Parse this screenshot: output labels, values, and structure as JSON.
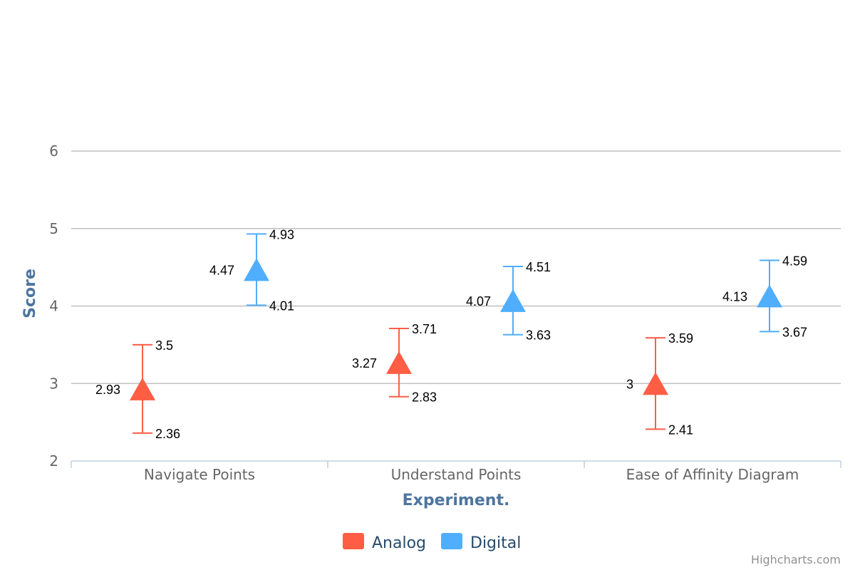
{
  "chart_data": {
    "type": "scatter",
    "title": "",
    "xlabel": "Experiment.",
    "ylabel": "Score",
    "categories": [
      "Navigate Points",
      "Understand Points",
      "Ease of Affinity Diagram"
    ],
    "ylim": [
      2,
      6
    ],
    "yticks": [
      "2",
      "3",
      "4",
      "5",
      "6"
    ],
    "grid": true,
    "legend_position": "bottom-center",
    "marker": "triangle",
    "series": [
      {
        "name": "Analog",
        "color": "#ff5d44",
        "values": [
          2.93,
          3.27,
          3
        ],
        "labels": [
          "2.93",
          "3.27",
          "3"
        ],
        "low": [
          2.36,
          2.83,
          2.41
        ],
        "low_labels": [
          "2.36",
          "2.83",
          "2.41"
        ],
        "high": [
          3.5,
          3.71,
          3.59
        ],
        "high_labels": [
          "3.5",
          "3.71",
          "3.59"
        ]
      },
      {
        "name": "Digital",
        "color": "#4faefe",
        "values": [
          4.47,
          4.07,
          4.13
        ],
        "labels": [
          "4.47",
          "4.07",
          "4.13"
        ],
        "low": [
          4.01,
          3.63,
          3.67
        ],
        "low_labels": [
          "4.01",
          "3.63",
          "3.67"
        ],
        "high": [
          4.93,
          4.51,
          4.59
        ],
        "high_labels": [
          "4.93",
          "4.51",
          "4.59"
        ]
      }
    ]
  },
  "credits": "Highcharts.com"
}
